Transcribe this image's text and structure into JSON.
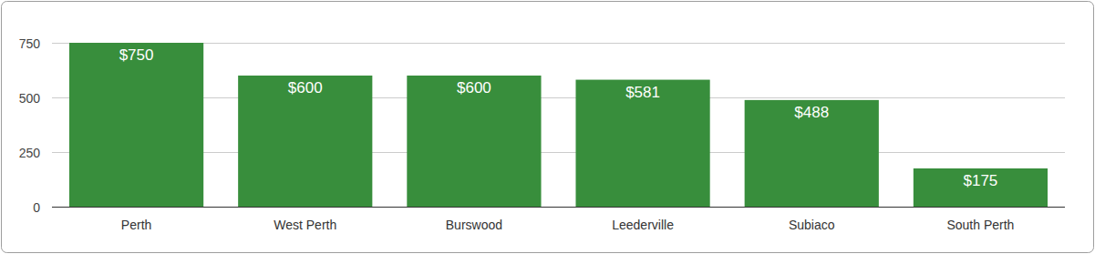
{
  "chart_data": {
    "type": "bar",
    "categories": [
      "Perth",
      "West Perth",
      "Burswood",
      "Leederville",
      "Subiaco",
      "South Perth"
    ],
    "values": [
      750,
      600,
      600,
      581,
      488,
      175
    ],
    "value_labels": [
      "$750",
      "$600",
      "$600",
      "$581",
      "$488",
      "$175"
    ],
    "data_labels": true,
    "color": "#388e3c",
    "ylim": [
      0,
      750
    ],
    "yticks": [
      0,
      250,
      500,
      750
    ],
    "grid": true
  }
}
